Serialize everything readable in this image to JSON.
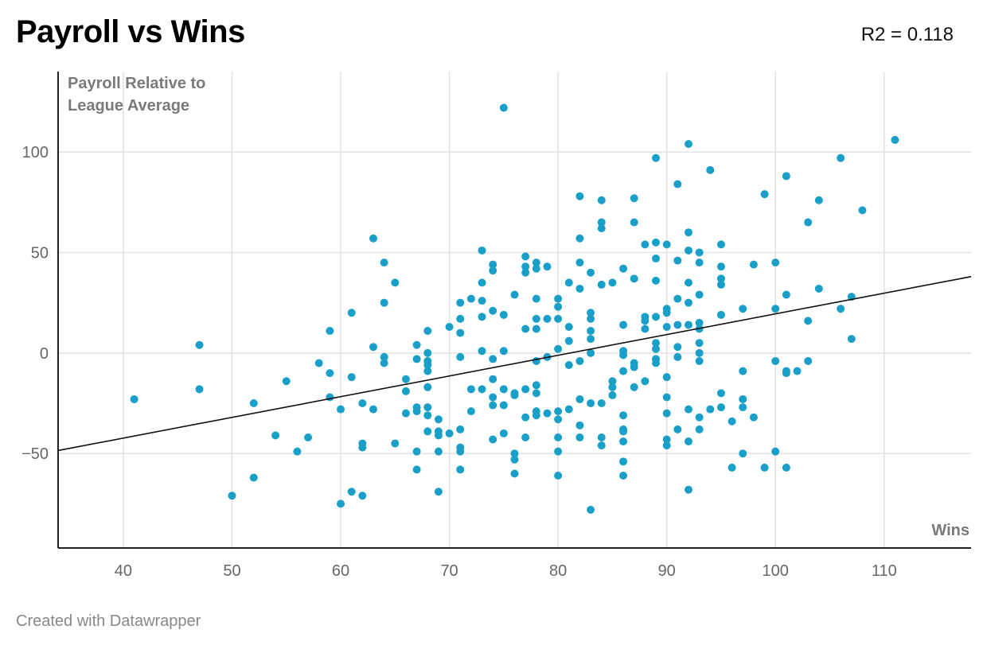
{
  "chart_data": {
    "type": "scatter",
    "title": "Payroll vs Wins",
    "annotation": "R2 = 0.118",
    "xlabel": "Wins",
    "ylabel": "Payroll Relative to League Average",
    "ylabel_lines": [
      "Payroll Relative to",
      "League Average"
    ],
    "xlim": [
      34,
      118
    ],
    "ylim": [
      -97,
      140
    ],
    "xticks": [
      40,
      50,
      60,
      70,
      80,
      90,
      100,
      110
    ],
    "yticks": [
      100,
      50,
      0,
      -50
    ],
    "ytick_labels": [
      "100",
      "50",
      "0",
      "−50"
    ],
    "trendline": {
      "x": [
        34,
        118
      ],
      "y": [
        -48.5,
        38
      ]
    },
    "point_color": "#1aa0c8",
    "points": [
      [
        41,
        -23
      ],
      [
        47,
        4
      ],
      [
        47,
        -18
      ],
      [
        50,
        -71
      ],
      [
        52,
        -25
      ],
      [
        52,
        -62
      ],
      [
        54,
        -41
      ],
      [
        55,
        -14
      ],
      [
        56,
        -49
      ],
      [
        57,
        -42
      ],
      [
        58,
        -5
      ],
      [
        59,
        11
      ],
      [
        59,
        -10
      ],
      [
        59,
        -22
      ],
      [
        60,
        -28
      ],
      [
        60,
        -75
      ],
      [
        61,
        20
      ],
      [
        61,
        -12
      ],
      [
        61,
        -69
      ],
      [
        62,
        -25
      ],
      [
        62,
        -45
      ],
      [
        62,
        -47
      ],
      [
        62,
        -71
      ],
      [
        63,
        57
      ],
      [
        63,
        3
      ],
      [
        63,
        -28
      ],
      [
        64,
        45
      ],
      [
        64,
        25
      ],
      [
        64,
        -2
      ],
      [
        64,
        -5
      ],
      [
        65,
        35
      ],
      [
        65,
        -45
      ],
      [
        66,
        -13
      ],
      [
        66,
        -19
      ],
      [
        66,
        -30
      ],
      [
        67,
        4
      ],
      [
        67,
        -3
      ],
      [
        67,
        -27
      ],
      [
        67,
        -29
      ],
      [
        67,
        -49
      ],
      [
        67,
        -58
      ],
      [
        68,
        11
      ],
      [
        68,
        0
      ],
      [
        68,
        -4
      ],
      [
        68,
        -6
      ],
      [
        68,
        -9
      ],
      [
        68,
        -17
      ],
      [
        68,
        -27
      ],
      [
        68,
        -31
      ],
      [
        68,
        -39
      ],
      [
        69,
        -33
      ],
      [
        69,
        -39
      ],
      [
        69,
        -41
      ],
      [
        69,
        -49
      ],
      [
        69,
        -69
      ],
      [
        70,
        13
      ],
      [
        70,
        -40
      ],
      [
        71,
        25
      ],
      [
        71,
        17
      ],
      [
        71,
        10
      ],
      [
        71,
        -2
      ],
      [
        71,
        -38
      ],
      [
        71,
        -47
      ],
      [
        71,
        -49
      ],
      [
        71,
        -58
      ],
      [
        72,
        27
      ],
      [
        72,
        -18
      ],
      [
        72,
        -29
      ],
      [
        73,
        51
      ],
      [
        73,
        35
      ],
      [
        73,
        26
      ],
      [
        73,
        18
      ],
      [
        73,
        1
      ],
      [
        73,
        -18
      ],
      [
        74,
        44
      ],
      [
        74,
        41
      ],
      [
        74,
        21
      ],
      [
        74,
        -3
      ],
      [
        74,
        -13
      ],
      [
        74,
        -22
      ],
      [
        74,
        -26
      ],
      [
        74,
        -43
      ],
      [
        75,
        122
      ],
      [
        75,
        19
      ],
      [
        75,
        1
      ],
      [
        75,
        -18
      ],
      [
        75,
        -26
      ],
      [
        75,
        -40
      ],
      [
        76,
        29
      ],
      [
        76,
        -20
      ],
      [
        76,
        -21
      ],
      [
        76,
        -50
      ],
      [
        76,
        -53
      ],
      [
        76,
        -60
      ],
      [
        77,
        48
      ],
      [
        77,
        43
      ],
      [
        77,
        40
      ],
      [
        77,
        12
      ],
      [
        77,
        -18
      ],
      [
        77,
        -32
      ],
      [
        77,
        -42
      ],
      [
        78,
        45
      ],
      [
        78,
        42
      ],
      [
        78,
        27
      ],
      [
        78,
        17
      ],
      [
        78,
        12
      ],
      [
        78,
        -4
      ],
      [
        78,
        -16
      ],
      [
        78,
        -20
      ],
      [
        78,
        -29
      ],
      [
        78,
        -31
      ],
      [
        79,
        43
      ],
      [
        79,
        17
      ],
      [
        79,
        -2
      ],
      [
        79,
        -30
      ],
      [
        80,
        27
      ],
      [
        80,
        23
      ],
      [
        80,
        17
      ],
      [
        80,
        2
      ],
      [
        80,
        -29
      ],
      [
        80,
        -33
      ],
      [
        80,
        -42
      ],
      [
        80,
        -49
      ],
      [
        80,
        -61
      ],
      [
        81,
        35
      ],
      [
        81,
        13
      ],
      [
        81,
        6
      ],
      [
        81,
        -6
      ],
      [
        81,
        -28
      ],
      [
        82,
        78
      ],
      [
        82,
        57
      ],
      [
        82,
        45
      ],
      [
        82,
        32
      ],
      [
        82,
        -4
      ],
      [
        82,
        -23
      ],
      [
        82,
        -36
      ],
      [
        82,
        -42
      ],
      [
        83,
        40
      ],
      [
        83,
        20
      ],
      [
        83,
        17
      ],
      [
        83,
        11
      ],
      [
        83,
        7
      ],
      [
        83,
        0
      ],
      [
        83,
        -25
      ],
      [
        83,
        -78
      ],
      [
        84,
        76
      ],
      [
        84,
        65
      ],
      [
        84,
        62
      ],
      [
        84,
        34
      ],
      [
        84,
        -25
      ],
      [
        84,
        -42
      ],
      [
        84,
        -46
      ],
      [
        85,
        35
      ],
      [
        85,
        -14
      ],
      [
        85,
        -17
      ],
      [
        85,
        -21
      ],
      [
        86,
        42
      ],
      [
        86,
        14
      ],
      [
        86,
        1
      ],
      [
        86,
        -1
      ],
      [
        86,
        -9
      ],
      [
        86,
        -31
      ],
      [
        86,
        -38
      ],
      [
        86,
        -39
      ],
      [
        86,
        -44
      ],
      [
        86,
        -54
      ],
      [
        86,
        -61
      ],
      [
        87,
        77
      ],
      [
        87,
        65
      ],
      [
        87,
        37
      ],
      [
        87,
        -5
      ],
      [
        87,
        -7
      ],
      [
        87,
        -17
      ],
      [
        88,
        54
      ],
      [
        88,
        18
      ],
      [
        88,
        16
      ],
      [
        88,
        12
      ],
      [
        88,
        -14
      ],
      [
        89,
        97
      ],
      [
        89,
        55
      ],
      [
        89,
        47
      ],
      [
        89,
        36
      ],
      [
        89,
        18
      ],
      [
        89,
        5
      ],
      [
        89,
        2
      ],
      [
        89,
        -3
      ],
      [
        89,
        -5
      ],
      [
        90,
        54
      ],
      [
        90,
        22
      ],
      [
        90,
        20
      ],
      [
        90,
        13
      ],
      [
        90,
        -12
      ],
      [
        90,
        -22
      ],
      [
        90,
        -30
      ],
      [
        90,
        -43
      ],
      [
        90,
        -46
      ],
      [
        91,
        84
      ],
      [
        91,
        46
      ],
      [
        91,
        27
      ],
      [
        91,
        14
      ],
      [
        91,
        3
      ],
      [
        91,
        -2
      ],
      [
        91,
        -38
      ],
      [
        92,
        104
      ],
      [
        92,
        60
      ],
      [
        92,
        51
      ],
      [
        92,
        35
      ],
      [
        92,
        25
      ],
      [
        92,
        14
      ],
      [
        92,
        -28
      ],
      [
        92,
        -44
      ],
      [
        92,
        -68
      ],
      [
        93,
        50
      ],
      [
        93,
        45
      ],
      [
        93,
        29
      ],
      [
        93,
        15
      ],
      [
        93,
        12
      ],
      [
        93,
        5
      ],
      [
        93,
        0
      ],
      [
        93,
        -4
      ],
      [
        93,
        -32
      ],
      [
        93,
        -38
      ],
      [
        94,
        91
      ],
      [
        94,
        -28
      ],
      [
        95,
        54
      ],
      [
        95,
        43
      ],
      [
        95,
        37
      ],
      [
        95,
        34
      ],
      [
        95,
        19
      ],
      [
        95,
        -20
      ],
      [
        95,
        -27
      ],
      [
        96,
        -34
      ],
      [
        96,
        -57
      ],
      [
        97,
        22
      ],
      [
        97,
        -9
      ],
      [
        97,
        -23
      ],
      [
        97,
        -27
      ],
      [
        97,
        -50
      ],
      [
        98,
        44
      ],
      [
        98,
        -32
      ],
      [
        99,
        79
      ],
      [
        99,
        -57
      ],
      [
        100,
        45
      ],
      [
        100,
        22
      ],
      [
        100,
        -4
      ],
      [
        100,
        -49
      ],
      [
        101,
        88
      ],
      [
        101,
        29
      ],
      [
        101,
        -9
      ],
      [
        101,
        -10
      ],
      [
        101,
        -57
      ],
      [
        102,
        -9
      ],
      [
        103,
        65
      ],
      [
        103,
        16
      ],
      [
        103,
        -4
      ],
      [
        104,
        76
      ],
      [
        104,
        32
      ],
      [
        106,
        97
      ],
      [
        106,
        22
      ],
      [
        107,
        28
      ],
      [
        107,
        7
      ],
      [
        108,
        71
      ],
      [
        111,
        106
      ]
    ]
  },
  "footer": "Created with Datawrapper"
}
